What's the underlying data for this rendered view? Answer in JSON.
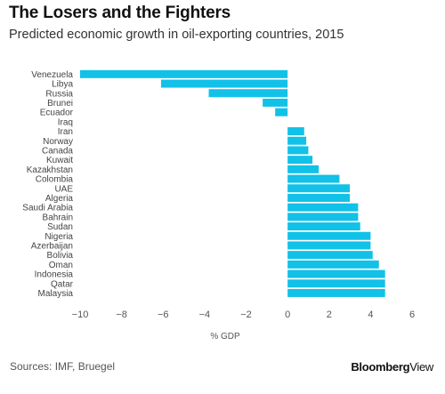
{
  "header": {
    "title": "The Losers and the Fighters",
    "subtitle": "Predicted economic growth in oil-exporting countries, 2015"
  },
  "footer": {
    "source": "Sources: IMF, Bruegel",
    "brand_bold": "Bloomberg",
    "brand_light": "View"
  },
  "colors": {
    "bar": "#12c1e8",
    "axis_text": "#555555",
    "label_text": "#444444"
  },
  "chart_data": {
    "type": "bar",
    "orientation": "horizontal",
    "title": "The Losers and the Fighters",
    "subtitle": "Predicted economic growth in oil-exporting countries, 2015",
    "xlabel": "% GDP",
    "ylabel": "",
    "xlim": [
      -10,
      6
    ],
    "xticks": [
      -10,
      -8,
      -6,
      -4,
      -2,
      0,
      2,
      4,
      6
    ],
    "xtick_labels": [
      "−10",
      "−8",
      "−6",
      "−4",
      "−2",
      "0",
      "2",
      "4",
      "6"
    ],
    "grid": false,
    "categories": [
      "Venezuela",
      "Libya",
      "Russia",
      "Brunei",
      "Ecuador",
      "Iraq",
      "Iran",
      "Norway",
      "Canada",
      "Kuwait",
      "Kazakhstan",
      "Colombia",
      "UAE",
      "Algeria",
      "Saudi Arabia",
      "Bahrain",
      "Sudan",
      "Nigeria",
      "Azerbaijan",
      "Bolivia",
      "Oman",
      "Indonesia",
      "Qatar",
      "Malaysia"
    ],
    "values": [
      -10.0,
      -6.1,
      -3.8,
      -1.2,
      -0.6,
      0.0,
      0.8,
      0.9,
      1.0,
      1.2,
      1.5,
      2.5,
      3.0,
      3.0,
      3.4,
      3.4,
      3.5,
      4.0,
      4.0,
      4.1,
      4.4,
      4.7,
      4.7,
      4.7
    ]
  }
}
